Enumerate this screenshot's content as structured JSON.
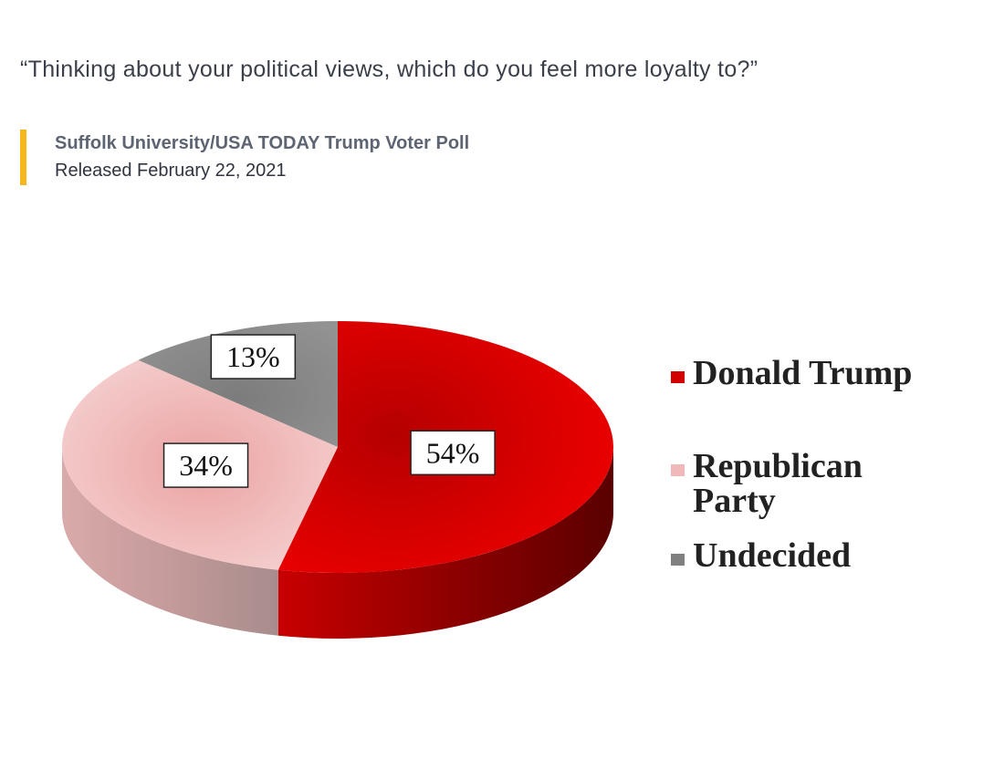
{
  "question": "“Thinking about your political views, which do you feel more loyalty to?”",
  "source": {
    "title": "Suffolk University/USA TODAY Trump Voter Poll",
    "released": "Released February 22, 2021"
  },
  "colors": {
    "accent_bar": "#f5b71c",
    "trump": "#d30000",
    "republican": "#f0b8b8",
    "undecided": "#808080"
  },
  "chart_data": {
    "type": "pie",
    "style": "3d",
    "legend_position": "right",
    "slices": [
      {
        "label": "Donald Trump",
        "value": 54,
        "display": "54%"
      },
      {
        "label": "Republican Party",
        "value": 34,
        "display": "34%"
      },
      {
        "label": "Undecided",
        "value": 13,
        "display": "13%"
      }
    ]
  }
}
